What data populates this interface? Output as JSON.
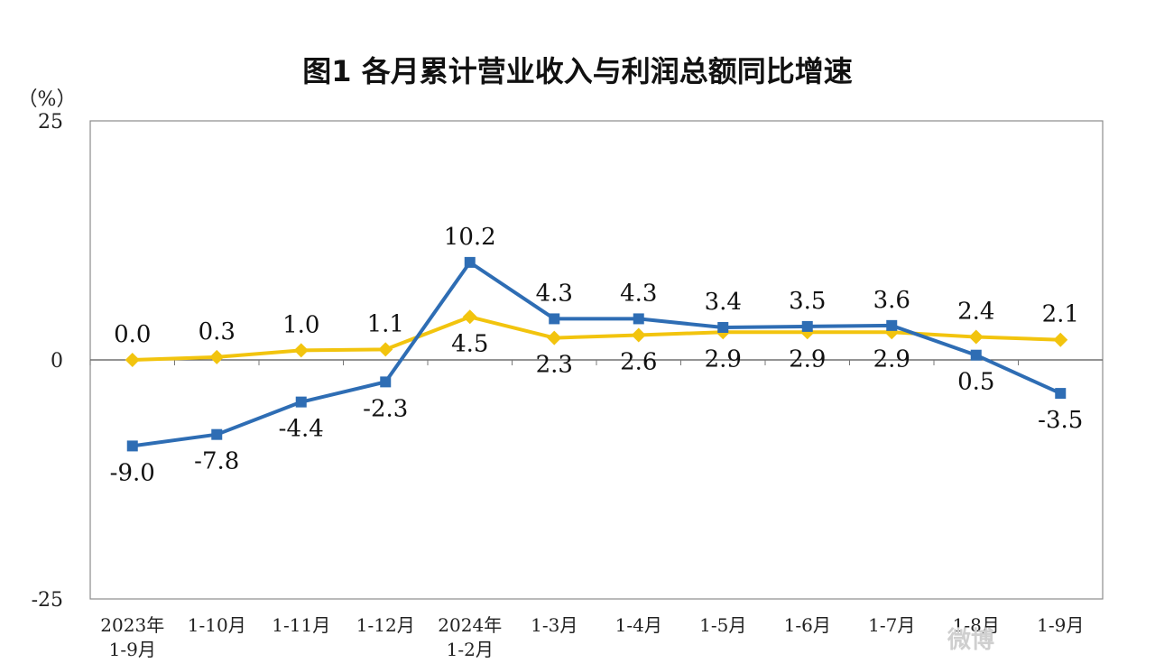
{
  "chart_data": {
    "type": "line",
    "title": "图1  各月累计营业收入与利润总额同比增速",
    "unit_label": "（%）",
    "ylim": [
      -25,
      25
    ],
    "y_ticks": [
      "25",
      "0",
      "-25"
    ],
    "grid": false,
    "categories": [
      [
        "2023年",
        "1-9月"
      ],
      [
        "1-10月"
      ],
      [
        "1-11月"
      ],
      [
        "1-12月"
      ],
      [
        "2024年",
        "1-2月"
      ],
      [
        "1-3月"
      ],
      [
        "1-4月"
      ],
      [
        "1-5月"
      ],
      [
        "1-6月"
      ],
      [
        "1-7月"
      ],
      [
        "1-8月"
      ],
      [
        "1-9月"
      ]
    ],
    "series": [
      {
        "color": "#2E6DB4",
        "marker": "square",
        "values": [
          -9.0,
          -7.8,
          -4.4,
          -2.3,
          10.2,
          4.3,
          4.3,
          3.4,
          3.5,
          3.6,
          0.5,
          -3.5
        ],
        "labels": [
          "-9.0",
          "-7.8",
          "-4.4",
          "-2.3",
          "10.2",
          "4.3",
          "4.3",
          "3.4",
          "3.5",
          "3.6",
          "0.5",
          "-3.5"
        ]
      },
      {
        "color": "#F2C40E",
        "marker": "diamond",
        "values": [
          0.0,
          0.3,
          1.0,
          1.1,
          4.5,
          2.3,
          2.6,
          2.9,
          2.9,
          2.9,
          2.4,
          2.1
        ],
        "labels": [
          "0.0",
          "0.3",
          "1.0",
          "1.1",
          "4.5",
          "2.3",
          "2.6",
          "2.9",
          "2.9",
          "2.9",
          "2.4",
          "2.1"
        ]
      }
    ],
    "watermark_text": "微博"
  }
}
